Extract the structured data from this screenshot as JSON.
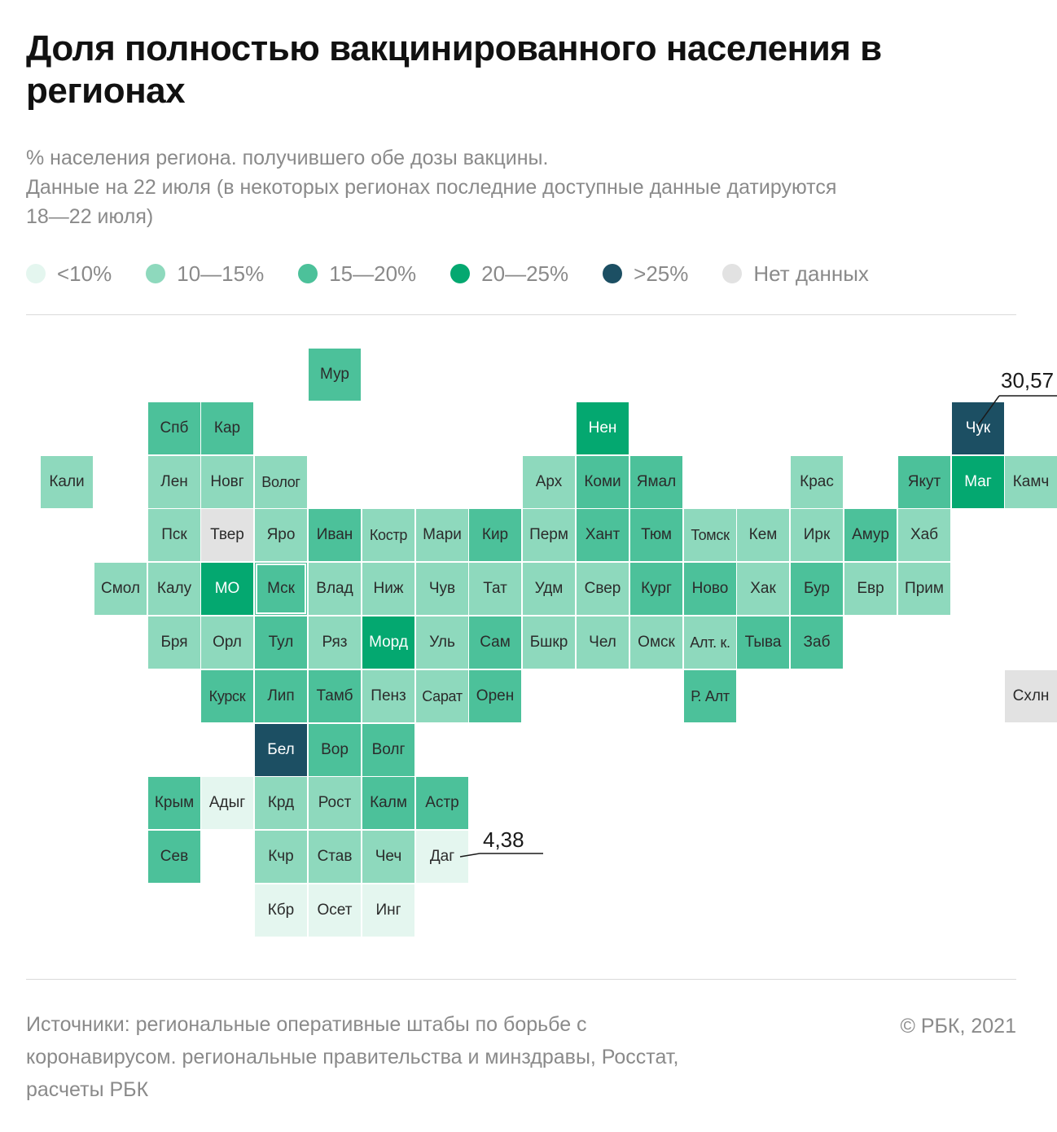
{
  "title": "Доля полностью вакцинированного населения в регионах",
  "subtitle": {
    "line1": "% населения региона. получившего обе дозы вакцины.",
    "line2": "Данные на 22 июля (в некоторых регионах последние доступные данные датируются",
    "line3": "18—22 июля)"
  },
  "legend": [
    {
      "label": "<10%",
      "color": "#e4f6ef"
    },
    {
      "label": "10—15%",
      "color": "#8ed9bd"
    },
    {
      "label": "15—20%",
      "color": "#4cc19a"
    },
    {
      "label": "20—25%",
      "color": "#04a870"
    },
    {
      "label": ">25%",
      "color": "#1c4f63"
    },
    {
      "label": "Нет данных",
      "color": "#e2e2e2"
    }
  ],
  "chart_data": {
    "type": "heatmap",
    "tiles": [
      {
        "label": "Мур",
        "col": 5,
        "row": 0,
        "cat": 2
      },
      {
        "label": "Спб",
        "col": 2,
        "row": 1,
        "cat": 2
      },
      {
        "label": "Кар",
        "col": 3,
        "row": 1,
        "cat": 2
      },
      {
        "label": "Нен",
        "col": 10,
        "row": 1,
        "cat": 3
      },
      {
        "label": "Чук",
        "col": 17,
        "row": 1,
        "cat": 4
      },
      {
        "label": "Кали",
        "col": 0,
        "row": 2,
        "cat": 1
      },
      {
        "label": "Лен",
        "col": 2,
        "row": 2,
        "cat": 1
      },
      {
        "label": "Новг",
        "col": 3,
        "row": 2,
        "cat": 1
      },
      {
        "label": "Волог",
        "col": 4,
        "row": 2,
        "cat": 1
      },
      {
        "label": "Арх",
        "col": 9,
        "row": 2,
        "cat": 1
      },
      {
        "label": "Коми",
        "col": 10,
        "row": 2,
        "cat": 2
      },
      {
        "label": "Ямал",
        "col": 11,
        "row": 2,
        "cat": 2
      },
      {
        "label": "Крас",
        "col": 14,
        "row": 2,
        "cat": 1
      },
      {
        "label": "Якут",
        "col": 16,
        "row": 2,
        "cat": 2
      },
      {
        "label": "Маг",
        "col": 17,
        "row": 2,
        "cat": 3
      },
      {
        "label": "Камч",
        "col": 18,
        "row": 2,
        "cat": 1
      },
      {
        "label": "Пск",
        "col": 2,
        "row": 3,
        "cat": 1
      },
      {
        "label": "Твер",
        "col": 3,
        "row": 3,
        "cat": 5
      },
      {
        "label": "Яро",
        "col": 4,
        "row": 3,
        "cat": 1
      },
      {
        "label": "Иван",
        "col": 5,
        "row": 3,
        "cat": 2
      },
      {
        "label": "Костр",
        "col": 6,
        "row": 3,
        "cat": 1
      },
      {
        "label": "Мари",
        "col": 7,
        "row": 3,
        "cat": 1
      },
      {
        "label": "Кир",
        "col": 8,
        "row": 3,
        "cat": 2
      },
      {
        "label": "Перм",
        "col": 9,
        "row": 3,
        "cat": 1
      },
      {
        "label": "Хант",
        "col": 10,
        "row": 3,
        "cat": 2
      },
      {
        "label": "Тюм",
        "col": 11,
        "row": 3,
        "cat": 2
      },
      {
        "label": "Томск",
        "col": 12,
        "row": 3,
        "cat": 1
      },
      {
        "label": "Кем",
        "col": 13,
        "row": 3,
        "cat": 1
      },
      {
        "label": "Ирк",
        "col": 14,
        "row": 3,
        "cat": 1
      },
      {
        "label": "Амур",
        "col": 15,
        "row": 3,
        "cat": 2
      },
      {
        "label": "Хаб",
        "col": 16,
        "row": 3,
        "cat": 1
      },
      {
        "label": "Смол",
        "col": 1,
        "row": 4,
        "cat": 1
      },
      {
        "label": "Калу",
        "col": 2,
        "row": 4,
        "cat": 1
      },
      {
        "label": "МО",
        "col": 3,
        "row": 4,
        "cat": 3
      },
      {
        "label": "Мск",
        "col": 4,
        "row": 4,
        "cat": 2,
        "outlined": true
      },
      {
        "label": "Влад",
        "col": 5,
        "row": 4,
        "cat": 1
      },
      {
        "label": "Ниж",
        "col": 6,
        "row": 4,
        "cat": 1
      },
      {
        "label": "Чув",
        "col": 7,
        "row": 4,
        "cat": 1
      },
      {
        "label": "Тат",
        "col": 8,
        "row": 4,
        "cat": 1
      },
      {
        "label": "Удм",
        "col": 9,
        "row": 4,
        "cat": 1
      },
      {
        "label": "Свер",
        "col": 10,
        "row": 4,
        "cat": 1
      },
      {
        "label": "Кург",
        "col": 11,
        "row": 4,
        "cat": 2
      },
      {
        "label": "Ново",
        "col": 12,
        "row": 4,
        "cat": 2
      },
      {
        "label": "Хак",
        "col": 13,
        "row": 4,
        "cat": 1
      },
      {
        "label": "Бур",
        "col": 14,
        "row": 4,
        "cat": 2
      },
      {
        "label": "Евр",
        "col": 15,
        "row": 4,
        "cat": 1
      },
      {
        "label": "Прим",
        "col": 16,
        "row": 4,
        "cat": 1
      },
      {
        "label": "Бря",
        "col": 2,
        "row": 5,
        "cat": 1
      },
      {
        "label": "Орл",
        "col": 3,
        "row": 5,
        "cat": 1
      },
      {
        "label": "Тул",
        "col": 4,
        "row": 5,
        "cat": 2
      },
      {
        "label": "Ряз",
        "col": 5,
        "row": 5,
        "cat": 1
      },
      {
        "label": "Морд",
        "col": 6,
        "row": 5,
        "cat": 3
      },
      {
        "label": "Уль",
        "col": 7,
        "row": 5,
        "cat": 1
      },
      {
        "label": "Сам",
        "col": 8,
        "row": 5,
        "cat": 2
      },
      {
        "label": "Бшкр",
        "col": 9,
        "row": 5,
        "cat": 1
      },
      {
        "label": "Чел",
        "col": 10,
        "row": 5,
        "cat": 1
      },
      {
        "label": "Омск",
        "col": 11,
        "row": 5,
        "cat": 1
      },
      {
        "label": "Алт. к.",
        "col": 12,
        "row": 5,
        "cat": 1
      },
      {
        "label": "Тыва",
        "col": 13,
        "row": 5,
        "cat": 2
      },
      {
        "label": "Заб",
        "col": 14,
        "row": 5,
        "cat": 2
      },
      {
        "label": "Курск",
        "col": 3,
        "row": 6,
        "cat": 2
      },
      {
        "label": "Лип",
        "col": 4,
        "row": 6,
        "cat": 2
      },
      {
        "label": "Тамб",
        "col": 5,
        "row": 6,
        "cat": 2
      },
      {
        "label": "Пенз",
        "col": 6,
        "row": 6,
        "cat": 1
      },
      {
        "label": "Сарат",
        "col": 7,
        "row": 6,
        "cat": 1
      },
      {
        "label": "Орен",
        "col": 8,
        "row": 6,
        "cat": 2
      },
      {
        "label": "Р. Алт",
        "col": 12,
        "row": 6,
        "cat": 2
      },
      {
        "label": "Схлн",
        "col": 18,
        "row": 6,
        "cat": 5
      },
      {
        "label": "Бел",
        "col": 4,
        "row": 7,
        "cat": 4
      },
      {
        "label": "Вор",
        "col": 5,
        "row": 7,
        "cat": 2
      },
      {
        "label": "Волг",
        "col": 6,
        "row": 7,
        "cat": 2
      },
      {
        "label": "Крым",
        "col": 2,
        "row": 8,
        "cat": 2
      },
      {
        "label": "Адыг",
        "col": 3,
        "row": 8,
        "cat": 0
      },
      {
        "label": "Крд",
        "col": 4,
        "row": 8,
        "cat": 1
      },
      {
        "label": "Рост",
        "col": 5,
        "row": 8,
        "cat": 1
      },
      {
        "label": "Калм",
        "col": 6,
        "row": 8,
        "cat": 2
      },
      {
        "label": "Астр",
        "col": 7,
        "row": 8,
        "cat": 2
      },
      {
        "label": "Сев",
        "col": 2,
        "row": 9,
        "cat": 2
      },
      {
        "label": "Кчр",
        "col": 4,
        "row": 9,
        "cat": 1
      },
      {
        "label": "Став",
        "col": 5,
        "row": 9,
        "cat": 1
      },
      {
        "label": "Чеч",
        "col": 6,
        "row": 9,
        "cat": 1
      },
      {
        "label": "Даг",
        "col": 7,
        "row": 9,
        "cat": 0
      },
      {
        "label": "Кбр",
        "col": 4,
        "row": 10,
        "cat": 0
      },
      {
        "label": "Осет",
        "col": 5,
        "row": 10,
        "cat": 0
      },
      {
        "label": "Инг",
        "col": 6,
        "row": 10,
        "cat": 0
      }
    ],
    "callouts": [
      {
        "region": "Чук",
        "value": "30,57"
      },
      {
        "region": "Даг",
        "value": "4,38"
      }
    ]
  },
  "source": "Источники: региональные оперативные штабы по борьбе с коронавирусом. региональные правительства и минздравы, Росстат, расчеты РБК",
  "copyright": "©  РБК, 2021"
}
